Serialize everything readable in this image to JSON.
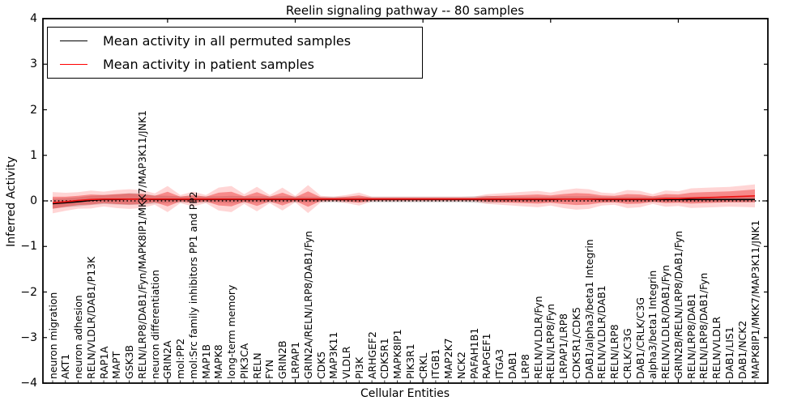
{
  "title": "Reelin signaling pathway -- 80 samples",
  "legend": {
    "items": [
      {
        "label": "Mean activity in all permuted samples",
        "color": "#000000"
      },
      {
        "label": "Mean activity in patient samples",
        "color": "#ff0000"
      }
    ]
  },
  "axes": {
    "xlabel": "Cellular Entities",
    "ylabel": "Inferred Activity",
    "yticks": [
      "4",
      "3",
      "2",
      "1",
      "0",
      "−1",
      "−2",
      "−3",
      "−4"
    ]
  },
  "chart_data": {
    "type": "line",
    "title": "Reelin signaling pathway -- 80 samples",
    "xlabel": "Cellular Entities",
    "ylabel": "Inferred Activity",
    "ylim": [
      -4,
      4
    ],
    "grid": false,
    "legend_position": "upper left",
    "zero_line": {
      "value": 0,
      "style": "dotted",
      "color": "#000000"
    },
    "categories": [
      "neuron migration",
      "AKT1",
      "neuron adhesion",
      "RELN/VLDLR/DAB1/P13K",
      "RAP1A",
      "MAPT",
      "GSK3B",
      "RELN/LRP8/DAB1/Fyn/MAPK8IP1/MKK7/MAP3K11/JNK1",
      "neuron differentiation",
      "GRIN2A",
      "mol:PP2",
      "mol:Src family inhibitors PP1 and PP2",
      "MAP1B",
      "MAPK8",
      "long-term memory",
      "PIK3CA",
      "RELN",
      "FYN",
      "GRIN2B",
      "LRPAP1",
      "GRIN2A/RELN/LRP8/DAB1/Fyn",
      "CDK5",
      "MAP3K11",
      "VLDLR",
      "PI3K",
      "ARHGEF2",
      "CDK5R1",
      "MAPK8IP1",
      "PIK3R1",
      "CRKL",
      "ITGB1",
      "MAP2K7",
      "NCK2",
      "PAFAH1B1",
      "RAPGEF1",
      "ITGA3",
      "DAB1",
      "LRP8",
      "RELN/VLDLR/Fyn",
      "RELN/LRP8/Fyn",
      "LRPAP1/LRP8",
      "CDK5R1/CDK5",
      "DAB1/alpha3/beta1 Integrin",
      "RELN/VLDLR/DAB1",
      "RELN/LRP8",
      "CRLK/C3G",
      "DAB1/CRLK/C3G",
      "alpha3/beta1 Integrin",
      "RELN/VLDLR/DAB1/Fyn",
      "GRIN2B/RELN/LRP8/DAB1/Fyn",
      "RELN/LRP8/DAB1",
      "RELN/LRP8/DAB1/Fyn",
      "RELN/VLDLR",
      "DAB1/LIS1",
      "DAB1/NCK2",
      "MAPK8IP1/MKK7/MAP3K11/JNK1"
    ],
    "series": [
      {
        "name": "Mean activity in all permuted samples",
        "color": "#000000",
        "style": "solid",
        "values": [
          -0.06,
          -0.04,
          -0.02,
          0.01,
          0.03,
          0.03,
          0.04,
          0.04,
          0.03,
          0.03,
          0.03,
          0.03,
          0.03,
          0.03,
          0.03,
          0.03,
          0.03,
          0.03,
          0.03,
          0.03,
          0.03,
          0.03,
          0.03,
          0.03,
          0.03,
          0.03,
          0.03,
          0.03,
          0.03,
          0.03,
          0.03,
          0.03,
          0.03,
          0.03,
          0.03,
          0.03,
          0.03,
          0.03,
          0.03,
          0.03,
          0.04,
          0.04,
          0.04,
          0.03,
          0.03,
          0.03,
          0.03,
          0.03,
          0.03,
          0.03,
          0.03,
          0.03,
          0.03,
          0.03,
          0.03,
          0.03
        ],
        "std": [
          0.11,
          0.1,
          0.1,
          0.1,
          0.1,
          0.11,
          0.13,
          0.12,
          0.09,
          0.08,
          0.07,
          0.07,
          0.07,
          0.07,
          0.08,
          0.07,
          0.07,
          0.07,
          0.07,
          0.07,
          0.06,
          0.06,
          0.06,
          0.06,
          0.06,
          0.06,
          0.06,
          0.06,
          0.06,
          0.06,
          0.06,
          0.06,
          0.06,
          0.07,
          0.08,
          0.07,
          0.06,
          0.06,
          0.06,
          0.06,
          0.06,
          0.06,
          0.06,
          0.06,
          0.06,
          0.06,
          0.06,
          0.06,
          0.06,
          0.06,
          0.06,
          0.06,
          0.06,
          0.06,
          0.06,
          0.06
        ]
      },
      {
        "name": "Mean activity in patient samples",
        "color": "#ff0000",
        "style": "solid",
        "values": [
          -0.04,
          -0.02,
          0.01,
          0.03,
          0.04,
          0.04,
          0.04,
          0.04,
          0.04,
          0.04,
          0.04,
          0.04,
          0.04,
          0.04,
          0.04,
          0.04,
          0.04,
          0.04,
          0.04,
          0.04,
          0.04,
          0.04,
          0.04,
          0.04,
          0.04,
          0.04,
          0.04,
          0.04,
          0.04,
          0.04,
          0.04,
          0.04,
          0.04,
          0.04,
          0.04,
          0.04,
          0.04,
          0.04,
          0.04,
          0.04,
          0.04,
          0.04,
          0.04,
          0.04,
          0.04,
          0.04,
          0.04,
          0.04,
          0.05,
          0.05,
          0.06,
          0.07,
          0.08,
          0.09,
          0.1,
          0.11
        ],
        "std": [
          0.13,
          0.11,
          0.1,
          0.11,
          0.09,
          0.11,
          0.12,
          0.11,
          0.07,
          0.16,
          0.05,
          0.09,
          0.05,
          0.14,
          0.16,
          0.06,
          0.15,
          0.05,
          0.14,
          0.04,
          0.17,
          0.04,
          0.03,
          0.05,
          0.08,
          0.03,
          0.03,
          0.03,
          0.03,
          0.03,
          0.03,
          0.03,
          0.03,
          0.03,
          0.06,
          0.07,
          0.08,
          0.09,
          0.1,
          0.08,
          0.11,
          0.13,
          0.12,
          0.08,
          0.07,
          0.11,
          0.1,
          0.06,
          0.1,
          0.09,
          0.12,
          0.12,
          0.12,
          0.12,
          0.13,
          0.14
        ]
      }
    ]
  },
  "colors": {
    "permuted_band": "rgba(128,128,128,0.32)",
    "patient_band_inner": "rgba(235,25,25,0.40)",
    "patient_band_outer": "rgba(255,45,45,0.20)",
    "frame": "#000000",
    "background": "#ffffff",
    "patient_line": "#ee1111",
    "permuted_line": "#000000"
  }
}
